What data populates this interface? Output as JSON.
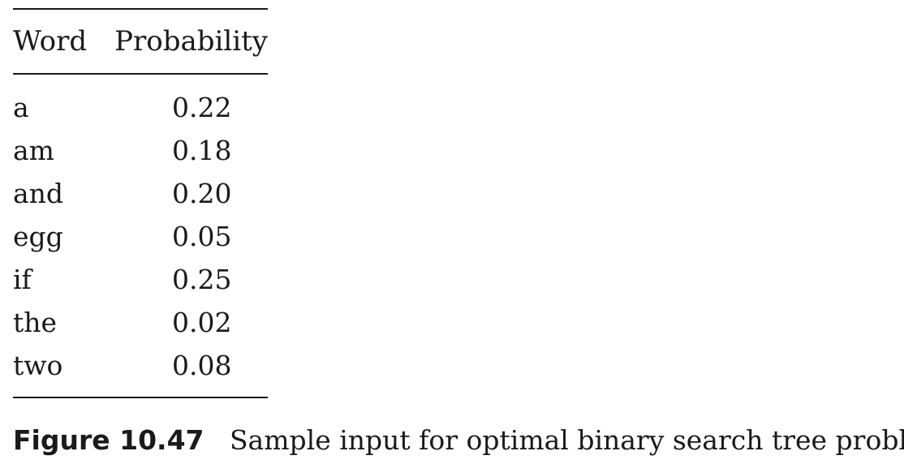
{
  "table": {
    "headers": {
      "word": "Word",
      "probability": "Probability"
    },
    "rows": [
      {
        "word": "a",
        "probability": "0.22"
      },
      {
        "word": "am",
        "probability": "0.18"
      },
      {
        "word": "and",
        "probability": "0.20"
      },
      {
        "word": "egg",
        "probability": "0.05"
      },
      {
        "word": "if",
        "probability": "0.25"
      },
      {
        "word": "the",
        "probability": "0.02"
      },
      {
        "word": "two",
        "probability": "0.08"
      }
    ]
  },
  "caption": {
    "label": "Figure 10.47",
    "text": "Sample input for optimal binary search tree problem"
  }
}
